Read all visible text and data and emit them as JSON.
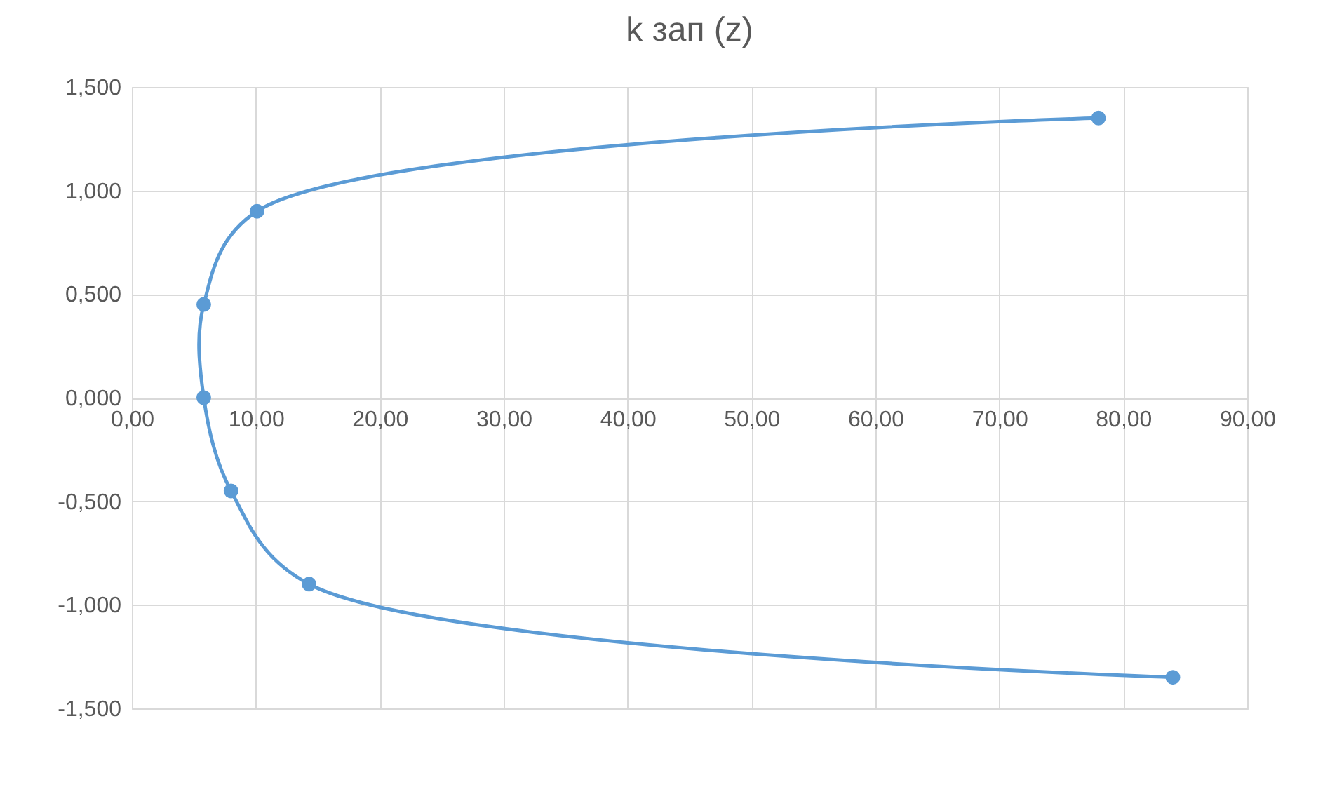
{
  "chart_data": {
    "type": "line",
    "title": "k зап (z)",
    "x": [
      78,
      10.1,
      5.8,
      5.8,
      8,
      14.3,
      84
    ],
    "series": [
      {
        "color": "#5b9bd5",
        "values": [
          1.35,
          0.9,
          0.45,
          0,
          -0.45,
          -0.9,
          -1.35
        ]
      }
    ],
    "xlim": [
      0,
      90
    ],
    "xticks": [
      {
        "value": 0,
        "label": "0,00"
      },
      {
        "value": 10,
        "label": "10,00"
      },
      {
        "value": 20,
        "label": "20,00"
      },
      {
        "value": 30,
        "label": "30,00"
      },
      {
        "value": 40,
        "label": "40,00"
      },
      {
        "value": 50,
        "label": "50,00"
      },
      {
        "value": 60,
        "label": "60,00"
      },
      {
        "value": 70,
        "label": "70,00"
      },
      {
        "value": 80,
        "label": "80,00"
      },
      {
        "value": 90,
        "label": "90,00"
      }
    ],
    "ylim": [
      -1.5,
      1.5
    ],
    "yticks": [
      {
        "value": -1.5,
        "label": "-1,500"
      },
      {
        "value": -1,
        "label": "-1,000"
      },
      {
        "value": -0.5,
        "label": "-0,500"
      },
      {
        "value": 0,
        "label": "0,000"
      },
      {
        "value": 0.5,
        "label": "0,500"
      },
      {
        "value": 1,
        "label": "1,000"
      },
      {
        "value": 1.5,
        "label": "1,500"
      }
    ],
    "grid": true,
    "marker": "circle",
    "line_style": "solid"
  }
}
